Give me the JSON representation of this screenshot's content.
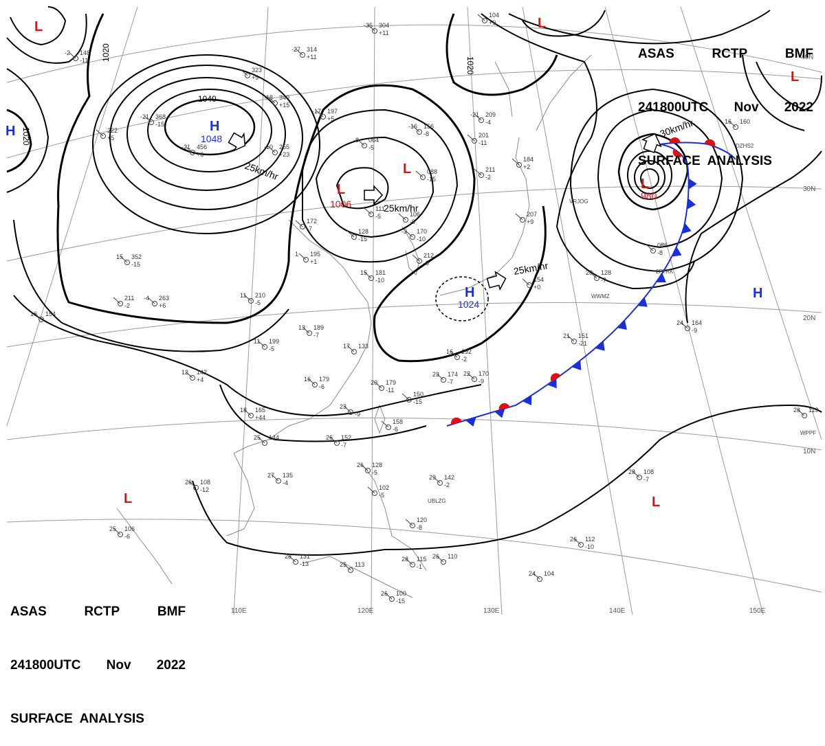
{
  "header": {
    "line1": [
      "ASAS",
      "RCTP",
      "BMF"
    ],
    "line2": [
      "241800UTC",
      "Nov",
      "2022"
    ],
    "line3": "SURFACE  ANALYSIS"
  },
  "footer": {
    "line1": [
      "ASAS",
      "RCTP",
      "BMF"
    ],
    "line2": [
      "241800UTC",
      "Nov",
      "2022"
    ],
    "line3": "SURFACE  ANALYSIS"
  },
  "lat_labels": [
    "40N",
    "30N",
    "20N",
    "10N"
  ],
  "lon_labels": [
    "110E",
    "120E",
    "130E",
    "140E",
    "150E"
  ],
  "isobar_labels": [
    "1020",
    "1020",
    "1020",
    "1040"
  ],
  "pressure_centers": [
    {
      "type": "H",
      "value": "1048",
      "color": "#1a2fd6"
    },
    {
      "type": "L",
      "value": "1006",
      "color": "#e01010"
    },
    {
      "type": "H",
      "value": "1024",
      "color": "#1a2fd6"
    },
    {
      "type": "L",
      "value": "980",
      "color": "#e01010"
    },
    {
      "type": "H",
      "value": "",
      "color": "#1a2fd6"
    },
    {
      "type": "H",
      "value": "",
      "color": "#1a2fd6"
    },
    {
      "type": "L",
      "value": "",
      "color": "#e01010"
    },
    {
      "type": "L",
      "value": "",
      "color": "#e01010"
    },
    {
      "type": "L",
      "value": "",
      "color": "#e01010"
    },
    {
      "type": "L",
      "value": "",
      "color": "#e01010"
    },
    {
      "type": "L",
      "value": "",
      "color": "#e01010"
    },
    {
      "type": "L",
      "value": "",
      "color": "#e01010"
    }
  ],
  "movements": [
    "25km/hr",
    "25km/hr",
    "25km/hr",
    "30km/hr"
  ],
  "colors": {
    "warm_front": "#e01010",
    "cold_front": "#1a2fd6",
    "isobar": "#000000",
    "grid": "#9a9a9a",
    "coast": "#8a8a8a"
  },
  "stations": [
    {
      "t": "-35",
      "p": "304",
      "d": "+11"
    },
    {
      "t": "-27",
      "p": "314",
      "d": "+11"
    },
    {
      "t": "-2",
      "p": "148",
      "d": "-11"
    },
    {
      "t": "",
      "p": "323",
      "d": "+9"
    },
    {
      "t": "-18",
      "p": "340",
      "d": "+15"
    },
    {
      "t": "-17",
      "p": "197",
      "d": "+5"
    },
    {
      "t": "-21",
      "p": "368",
      "d": "-15"
    },
    {
      "t": "-21",
      "p": "456",
      "d": "+6"
    },
    {
      "t": "",
      "p": "222",
      "d": "+5"
    },
    {
      "t": "-10",
      "p": "255",
      "d": "+23"
    },
    {
      "t": "-16",
      "p": "156",
      "d": "-8"
    },
    {
      "t": "-21",
      "p": "209",
      "d": "-4"
    },
    {
      "t": "",
      "p": "104",
      "d": "+9"
    },
    {
      "t": "",
      "p": "201",
      "d": "-11"
    },
    {
      "t": "-8",
      "p": "064",
      "d": "-5"
    },
    {
      "t": "",
      "p": "088",
      "d": "-15"
    },
    {
      "t": "",
      "p": "211",
      "d": "-2"
    },
    {
      "t": "",
      "p": "184",
      "d": "+2"
    },
    {
      "t": "-3",
      "p": "170",
      "d": "-10"
    },
    {
      "t": "",
      "p": "172",
      "d": "-7"
    },
    {
      "t": "",
      "p": "128",
      "d": "-15"
    },
    {
      "t": "",
      "p": "111",
      "d": "-5"
    },
    {
      "t": "",
      "p": "106",
      "d": "-9"
    },
    {
      "t": "",
      "p": "207",
      "d": "+9"
    },
    {
      "t": "15",
      "p": "352",
      "d": "-15"
    },
    {
      "t": "1",
      "p": "195",
      "d": "+1"
    },
    {
      "t": "15",
      "p": "181",
      "d": "-10"
    },
    {
      "t": "",
      "p": "212",
      "d": "-8"
    },
    {
      "t": "11",
      "p": "210",
      "d": "-5"
    },
    {
      "t": "-4",
      "p": "263",
      "d": "+6"
    },
    {
      "t": "",
      "p": "211",
      "d": "-2"
    },
    {
      "t": "16",
      "p": "154",
      "d": ""
    },
    {
      "t": "13",
      "p": "189",
      "d": "-7"
    },
    {
      "t": "11",
      "p": "199",
      "d": "-5"
    },
    {
      "t": "17",
      "p": "133",
      "d": ""
    },
    {
      "t": "12",
      "p": "142",
      "d": "+4"
    },
    {
      "t": "16",
      "p": "179",
      "d": "-6"
    },
    {
      "t": "16",
      "p": "192",
      "d": "-2"
    },
    {
      "t": "23",
      "p": "174",
      "d": "-7"
    },
    {
      "t": "22",
      "p": "170",
      "d": "-9"
    },
    {
      "t": "20",
      "p": "179",
      "d": "-11"
    },
    {
      "t": "",
      "p": "150",
      "d": "-15"
    },
    {
      "t": "18",
      "p": "165",
      "d": "+44"
    },
    {
      "t": "23",
      "p": "",
      "d": "-9"
    },
    {
      "t": "",
      "p": "158",
      "d": "-6"
    },
    {
      "t": "25",
      "p": "144",
      "d": ""
    },
    {
      "t": "26",
      "p": "152",
      "d": "-7"
    },
    {
      "t": "26",
      "p": "108",
      "d": "-12"
    },
    {
      "t": "27",
      "p": "135",
      "d": "-4"
    },
    {
      "t": "26",
      "p": "128",
      "d": "-5"
    },
    {
      "t": "",
      "p": "102",
      "d": "-5"
    },
    {
      "t": "29",
      "p": "142",
      "d": "-2"
    },
    {
      "t": "",
      "p": "120",
      "d": "-8"
    },
    {
      "t": "25",
      "p": "106",
      "d": "-6"
    },
    {
      "t": "28",
      "p": "131",
      "d": "-13"
    },
    {
      "t": "25",
      "p": "113",
      "d": ""
    },
    {
      "t": "28",
      "p": "115",
      "d": "-1"
    },
    {
      "t": "26",
      "p": "110",
      "d": ""
    },
    {
      "t": "26",
      "p": "100",
      "d": "-15"
    },
    {
      "t": "20",
      "p": "128",
      "d": "-7"
    },
    {
      "t": "21",
      "p": "151",
      "d": "-21"
    },
    {
      "t": "",
      "p": "086",
      "d": "-8"
    },
    {
      "t": "",
      "p": "154",
      "d": "+0"
    },
    {
      "t": "24",
      "p": "164",
      "d": "-9"
    },
    {
      "t": "16",
      "p": "160",
      "d": ""
    },
    {
      "t": "28",
      "p": "108",
      "d": "-7"
    },
    {
      "t": "26",
      "p": "112",
      "d": "-10"
    },
    {
      "t": "24",
      "p": "104",
      "d": ""
    },
    {
      "t": "28",
      "p": "119",
      "d": ""
    }
  ],
  "ship_ids": [
    "WWMZ",
    "UBLZG",
    "WPPF",
    "DZHS2",
    "VRJOG",
    "2FTRK"
  ]
}
